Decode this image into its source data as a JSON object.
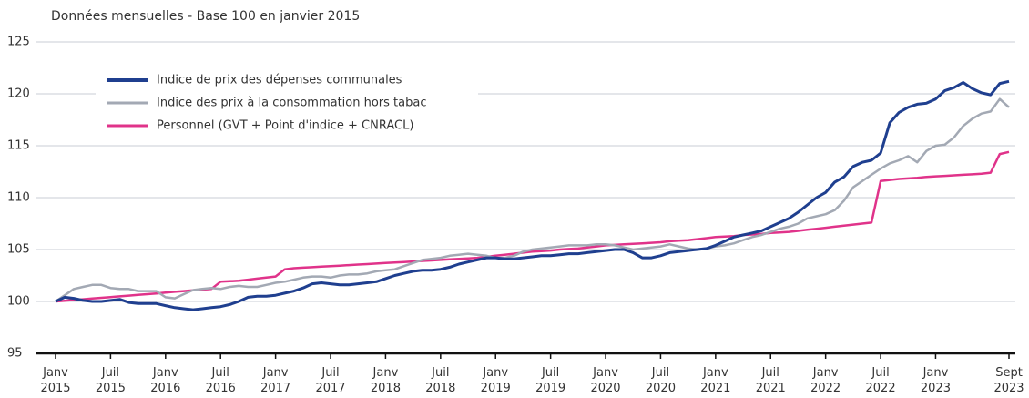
{
  "chart_data": {
    "type": "line",
    "title": "Données mensuelles - Base 100 en janvier 2015",
    "categories": [
      "Janv 2015",
      null,
      null,
      null,
      null,
      null,
      "Juil 2015",
      null,
      null,
      null,
      null,
      null,
      "Janv 2016",
      null,
      null,
      null,
      null,
      null,
      "Juil 2016",
      null,
      null,
      null,
      null,
      null,
      "Janv 2017",
      null,
      null,
      null,
      null,
      null,
      "Juil 2017",
      null,
      null,
      null,
      null,
      null,
      "Janv 2018",
      null,
      null,
      null,
      null,
      null,
      "Juil 2018",
      null,
      null,
      null,
      null,
      null,
      "Janv 2019",
      null,
      null,
      null,
      null,
      null,
      "Juil 2019",
      null,
      null,
      null,
      null,
      null,
      "Janv 2020",
      null,
      null,
      null,
      null,
      null,
      "Juil 2020",
      null,
      null,
      null,
      null,
      null,
      "Janv 2021",
      null,
      null,
      null,
      null,
      null,
      "Juil 2021",
      null,
      null,
      null,
      null,
      null,
      "Janv 2022",
      null,
      null,
      null,
      null,
      null,
      "Juil 2022",
      null,
      null,
      null,
      null,
      null,
      "Janv 2023",
      null,
      null,
      null,
      null,
      null,
      null,
      null,
      "Sept 2023"
    ],
    "series": [
      {
        "name": "Indice de prix des dépenses communales",
        "color": "#1f3f8f",
        "values": [
          100,
          100.4,
          100.3,
          100.1,
          100,
          100,
          100.1,
          100.2,
          99.9,
          99.8,
          99.8,
          99.8,
          99.6,
          99.4,
          99.3,
          99.2,
          99.3,
          99.4,
          99.5,
          99.7,
          100,
          100.4,
          100.5,
          100.5,
          100.6,
          100.8,
          101,
          101.3,
          101.7,
          101.8,
          101.7,
          101.6,
          101.6,
          101.7,
          101.8,
          101.9,
          102.2,
          102.5,
          102.7,
          102.9,
          103,
          103,
          103.1,
          103.3,
          103.6,
          103.8,
          104,
          104.2,
          104.2,
          104.1,
          104.1,
          104.2,
          104.3,
          104.4,
          104.4,
          104.5,
          104.6,
          104.6,
          104.7,
          104.8,
          104.9,
          105,
          105,
          104.7,
          104.2,
          104.2,
          104.4,
          104.7,
          104.8,
          104.9,
          105,
          105.1,
          105.4,
          105.8,
          106.2,
          106.4,
          106.6,
          106.8,
          107.2,
          107.6,
          108,
          108.6,
          109.3,
          110,
          110.5,
          111.5,
          112,
          113,
          113.4,
          113.6,
          114.3,
          117.2,
          118.2,
          118.7,
          119,
          119.1,
          119.5,
          120.3,
          120.6,
          121.1,
          120.5,
          120.1,
          119.9,
          121,
          121.2
        ]
      },
      {
        "name": "Indice des prix à la consommation hors tabac",
        "color": "#a3a9b4",
        "values": [
          100,
          100.6,
          101.2,
          101.4,
          101.6,
          101.6,
          101.3,
          101.2,
          101.2,
          101,
          101,
          101,
          100.4,
          100.3,
          100.7,
          101.1,
          101.2,
          101.3,
          101.2,
          101.4,
          101.5,
          101.4,
          101.4,
          101.6,
          101.8,
          101.9,
          102.1,
          102.3,
          102.4,
          102.4,
          102.3,
          102.5,
          102.6,
          102.6,
          102.7,
          102.9,
          103,
          103.1,
          103.4,
          103.7,
          104,
          104.1,
          104.2,
          104.4,
          104.5,
          104.6,
          104.5,
          104.4,
          104.2,
          104.2,
          104.4,
          104.8,
          105,
          105.1,
          105.2,
          105.3,
          105.4,
          105.4,
          105.4,
          105.5,
          105.5,
          105.4,
          105.2,
          105,
          105.1,
          105.2,
          105.3,
          105.5,
          105.3,
          105.1,
          105,
          105.1,
          105.3,
          105.4,
          105.6,
          105.9,
          106.2,
          106.4,
          106.7,
          107,
          107.2,
          107.5,
          108,
          108.2,
          108.4,
          108.8,
          109.7,
          111,
          111.6,
          112.2,
          112.8,
          113.3,
          113.6,
          114,
          113.4,
          114.5,
          115,
          115.1,
          115.8,
          116.9,
          117.6,
          118.1,
          118.3,
          119.5,
          118.7
        ]
      },
      {
        "name": "Personnel (GVT + Point d'indice + CNRACL)",
        "color": "#e0338a",
        "values": [
          100,
          100.07,
          100.14,
          100.21,
          100.28,
          100.35,
          100.42,
          100.49,
          100.56,
          100.63,
          100.7,
          100.77,
          100.85,
          100.93,
          101,
          101.07,
          101.14,
          101.2,
          101.9,
          101.95,
          102,
          102.1,
          102.2,
          102.3,
          102.4,
          103.1,
          103.2,
          103.25,
          103.3,
          103.35,
          103.4,
          103.45,
          103.5,
          103.55,
          103.6,
          103.65,
          103.7,
          103.75,
          103.8,
          103.85,
          103.9,
          103.95,
          104,
          104.05,
          104.1,
          104.15,
          104.2,
          104.3,
          104.4,
          104.5,
          104.6,
          104.7,
          104.8,
          104.85,
          104.9,
          105,
          105.05,
          105.1,
          105.2,
          105.3,
          105.4,
          105.45,
          105.5,
          105.55,
          105.6,
          105.65,
          105.7,
          105.8,
          105.85,
          105.9,
          106,
          106.1,
          106.2,
          106.25,
          106.3,
          106.4,
          106.45,
          106.5,
          106.6,
          106.65,
          106.7,
          106.8,
          106.9,
          107,
          107.1,
          107.2,
          107.3,
          107.4,
          107.5,
          107.6,
          111.6,
          111.7,
          111.8,
          111.85,
          111.9,
          112,
          112.05,
          112.1,
          112.15,
          112.2,
          112.25,
          112.3,
          112.4,
          114.2,
          114.4
        ]
      }
    ],
    "ylim": [
      95,
      125
    ],
    "yticks": [
      95,
      100,
      105,
      110,
      115,
      120,
      125
    ],
    "grid": true
  }
}
